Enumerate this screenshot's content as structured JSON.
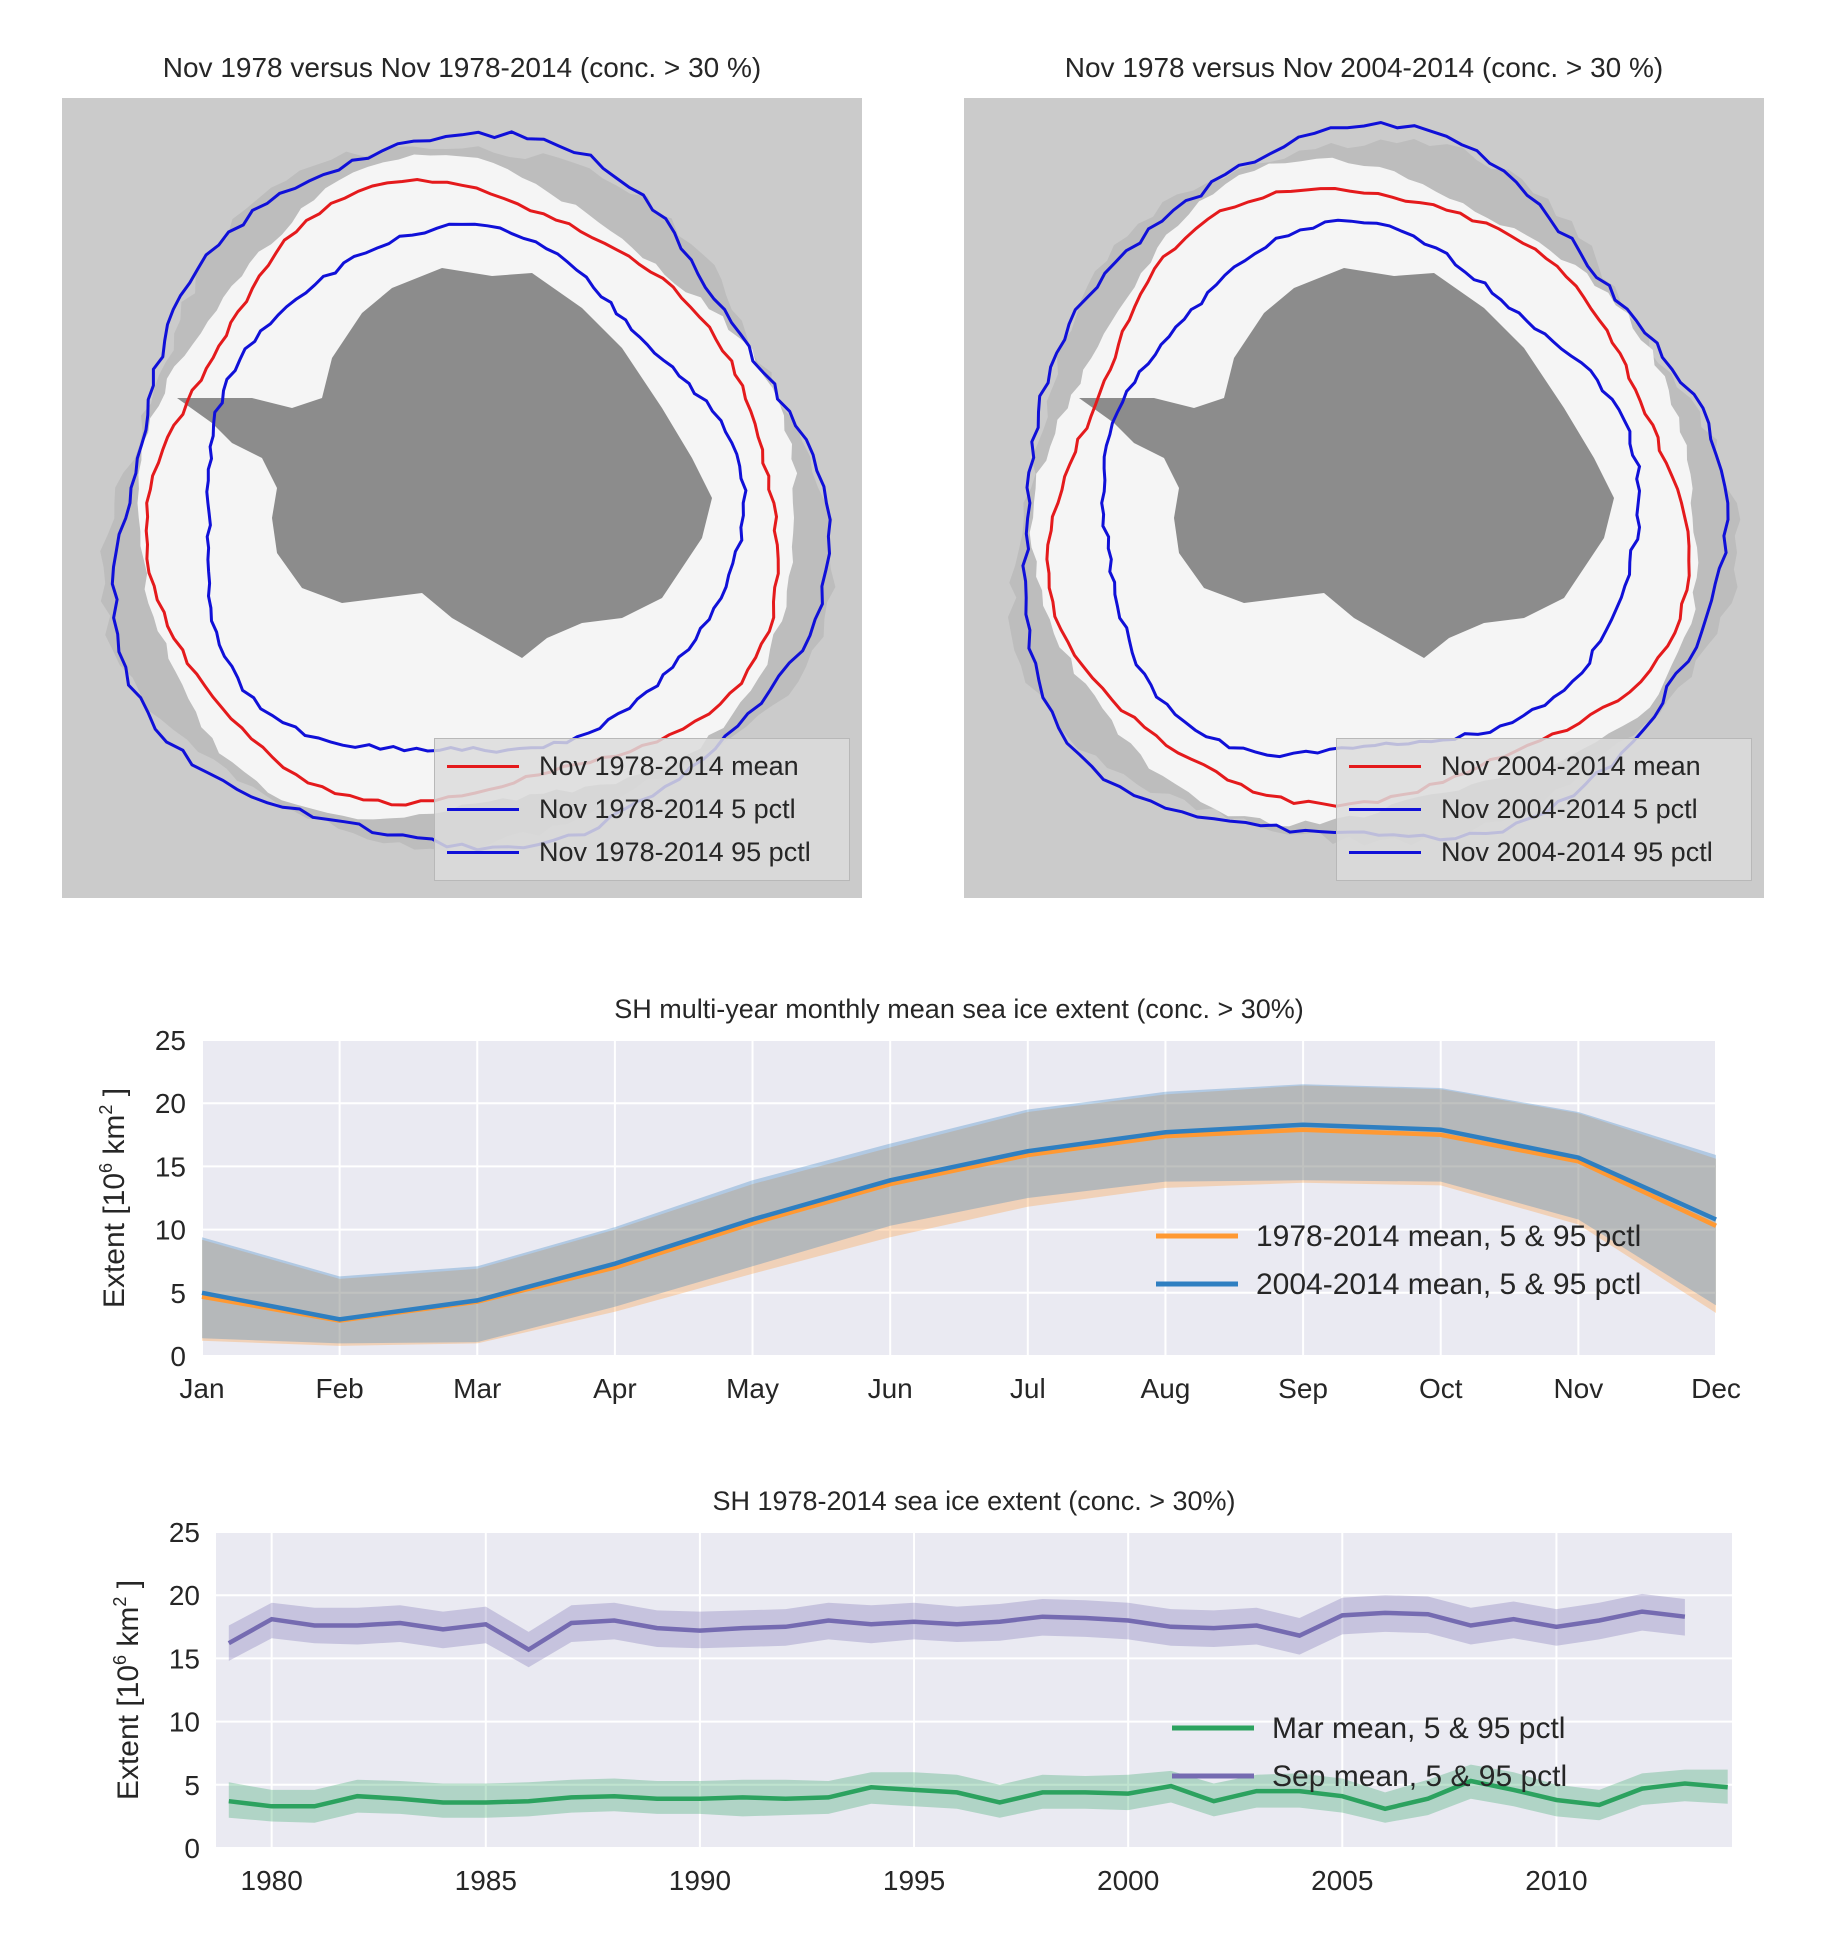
{
  "maps": [
    {
      "title": "Nov 1978 versus Nov 1978-2014 (conc. > 30 %)",
      "legend": [
        {
          "label": "Nov 1978-2014 mean",
          "color": "#e41a1c"
        },
        {
          "label": "Nov 1978-2014 5 pctl",
          "color": "#1010d8"
        },
        {
          "label": "Nov 1978-2014 95 pctl",
          "color": "#1010d8"
        }
      ]
    },
    {
      "title": "Nov 1978 versus Nov 2004-2014 (conc. > 30 %)",
      "legend": [
        {
          "label": "Nov 2004-2014 mean",
          "color": "#e41a1c"
        },
        {
          "label": "Nov 2004-2014 5 pctl",
          "color": "#1010d8"
        },
        {
          "label": "Nov 2004-2014 95 pctl",
          "color": "#1010d8"
        }
      ]
    }
  ],
  "chart_data": [
    {
      "type": "line",
      "title": "SH multi-year monthly mean sea ice extent (conc. > 30%)",
      "ylabel": "Extent [10⁶ km²]",
      "ylabel_base": "Extent [10",
      "ylabel_sup": "6",
      "ylabel_unit": "km",
      "ylabel_sup2": "2",
      "ylabel_end": "]",
      "categories": [
        "Jan",
        "Feb",
        "Mar",
        "Apr",
        "May",
        "Jun",
        "Jul",
        "Aug",
        "Sep",
        "Oct",
        "Nov",
        "Dec"
      ],
      "ylim": [
        0,
        25
      ],
      "yticks": [
        0,
        5,
        10,
        15,
        20,
        25
      ],
      "grid": true,
      "legend_position": "right",
      "series": [
        {
          "name": "1978-2014 mean, 5 & 95 pctl",
          "color": "#ff9933",
          "mean": [
            4.7,
            2.8,
            4.3,
            7.0,
            10.5,
            13.6,
            15.9,
            17.4,
            17.9,
            17.5,
            15.4,
            10.3
          ],
          "p5": [
            1.2,
            0.8,
            1.0,
            3.5,
            6.5,
            9.4,
            11.8,
            13.3,
            13.7,
            13.5,
            10.4,
            3.4
          ],
          "p95": [
            9.2,
            6.1,
            6.9,
            10.0,
            13.6,
            16.5,
            19.3,
            20.7,
            21.4,
            21.1,
            19.2,
            15.6
          ]
        },
        {
          "name": "2004-2014 mean, 5 & 95 pctl",
          "color": "#2f7fc1",
          "mean": [
            5.0,
            2.9,
            4.4,
            7.3,
            10.8,
            13.9,
            16.2,
            17.7,
            18.3,
            17.9,
            15.7,
            10.8
          ],
          "p5": [
            1.4,
            1.0,
            1.1,
            3.9,
            7.1,
            10.3,
            12.5,
            13.8,
            13.9,
            13.8,
            10.8,
            4.0
          ],
          "p95": [
            9.4,
            6.3,
            7.1,
            10.2,
            13.9,
            16.8,
            19.5,
            20.9,
            21.5,
            21.2,
            19.3,
            15.9
          ]
        }
      ]
    },
    {
      "type": "line",
      "title": "SH 1978-2014 sea ice extent (conc. > 30%)",
      "ylabel": "Extent [10⁶ km²]",
      "ylabel_base": "Extent [10",
      "ylabel_sup": "6",
      "ylabel_unit": "km",
      "ylabel_sup2": "2",
      "ylabel_end": "]",
      "xlim": [
        1978.7,
        2014.1
      ],
      "xticks": [
        1980,
        1985,
        1990,
        1995,
        2000,
        2005,
        2010
      ],
      "ylim": [
        0,
        25
      ],
      "yticks": [
        0,
        5,
        10,
        15,
        20,
        25
      ],
      "grid": true,
      "legend_position": "right",
      "series": [
        {
          "name": "Mar mean, 5 & 95 pctl",
          "color": "#2ca25f",
          "x": [
            1979,
            1980,
            1981,
            1982,
            1983,
            1984,
            1985,
            1986,
            1987,
            1988,
            1989,
            1990,
            1991,
            1992,
            1993,
            1994,
            1995,
            1996,
            1997,
            1998,
            1999,
            2000,
            2001,
            2002,
            2003,
            2004,
            2005,
            2006,
            2007,
            2008,
            2009,
            2010,
            2011,
            2012,
            2013,
            2014
          ],
          "mean": [
            3.7,
            3.3,
            3.3,
            4.1,
            3.9,
            3.6,
            3.6,
            3.7,
            4.0,
            4.1,
            3.9,
            3.9,
            4.0,
            3.9,
            4.0,
            4.8,
            4.6,
            4.4,
            3.6,
            4.4,
            4.4,
            4.3,
            4.9,
            3.7,
            4.5,
            4.5,
            4.1,
            3.1,
            3.9,
            5.3,
            4.6,
            3.8,
            3.4,
            4.7,
            5.1,
            4.8
          ],
          "p5": [
            2.4,
            2.1,
            2.0,
            2.8,
            2.7,
            2.4,
            2.4,
            2.5,
            2.8,
            2.9,
            2.7,
            2.7,
            2.5,
            2.6,
            2.7,
            3.5,
            3.3,
            3.1,
            2.4,
            3.1,
            3.1,
            3.0,
            3.6,
            2.5,
            3.2,
            3.2,
            2.8,
            2.0,
            2.6,
            3.9,
            3.3,
            2.5,
            2.2,
            3.4,
            3.7,
            3.5
          ],
          "p95": [
            5.2,
            4.6,
            4.6,
            5.4,
            5.3,
            5.1,
            5.1,
            5.2,
            5.4,
            5.5,
            5.3,
            5.3,
            5.4,
            5.4,
            5.3,
            6.0,
            6.0,
            5.8,
            5.0,
            5.8,
            5.7,
            5.8,
            6.1,
            5.1,
            5.8,
            5.9,
            5.5,
            4.4,
            5.4,
            6.6,
            6.0,
            5.0,
            4.6,
            5.9,
            6.2,
            6.2
          ]
        },
        {
          "name": "Sep mean, 5 & 95 pctl",
          "color": "#756bb1",
          "x": [
            1979,
            1980,
            1981,
            1982,
            1983,
            1984,
            1985,
            1986,
            1987,
            1988,
            1989,
            1990,
            1991,
            1992,
            1993,
            1994,
            1995,
            1996,
            1997,
            1998,
            1999,
            2000,
            2001,
            2002,
            2003,
            2004,
            2005,
            2006,
            2007,
            2008,
            2009,
            2010,
            2011,
            2012,
            2013
          ],
          "mean": [
            16.2,
            18.1,
            17.6,
            17.6,
            17.8,
            17.3,
            17.7,
            15.7,
            17.8,
            18.0,
            17.4,
            17.2,
            17.4,
            17.5,
            18.0,
            17.7,
            17.9,
            17.7,
            17.9,
            18.3,
            18.2,
            18.0,
            17.5,
            17.4,
            17.6,
            16.8,
            18.4,
            18.6,
            18.5,
            17.6,
            18.1,
            17.5,
            18.0,
            18.7,
            18.3
          ],
          "p5": [
            14.8,
            16.6,
            16.2,
            16.1,
            16.3,
            15.8,
            16.2,
            14.3,
            16.3,
            16.5,
            15.9,
            15.8,
            15.9,
            16.0,
            16.5,
            16.2,
            16.5,
            16.3,
            16.4,
            16.8,
            16.7,
            16.5,
            16.0,
            15.9,
            16.1,
            15.3,
            16.9,
            17.1,
            17.0,
            16.1,
            16.6,
            16.0,
            16.5,
            17.2,
            16.8
          ],
          "p95": [
            17.6,
            19.4,
            19.0,
            19.0,
            19.2,
            18.7,
            19.1,
            17.1,
            19.2,
            19.4,
            18.8,
            18.7,
            18.8,
            18.9,
            19.4,
            19.2,
            19.4,
            19.1,
            19.3,
            19.7,
            19.6,
            19.4,
            18.9,
            18.8,
            19.0,
            18.2,
            19.8,
            20.0,
            19.9,
            19.0,
            19.5,
            18.9,
            19.4,
            20.1,
            19.7
          ]
        }
      ]
    }
  ]
}
